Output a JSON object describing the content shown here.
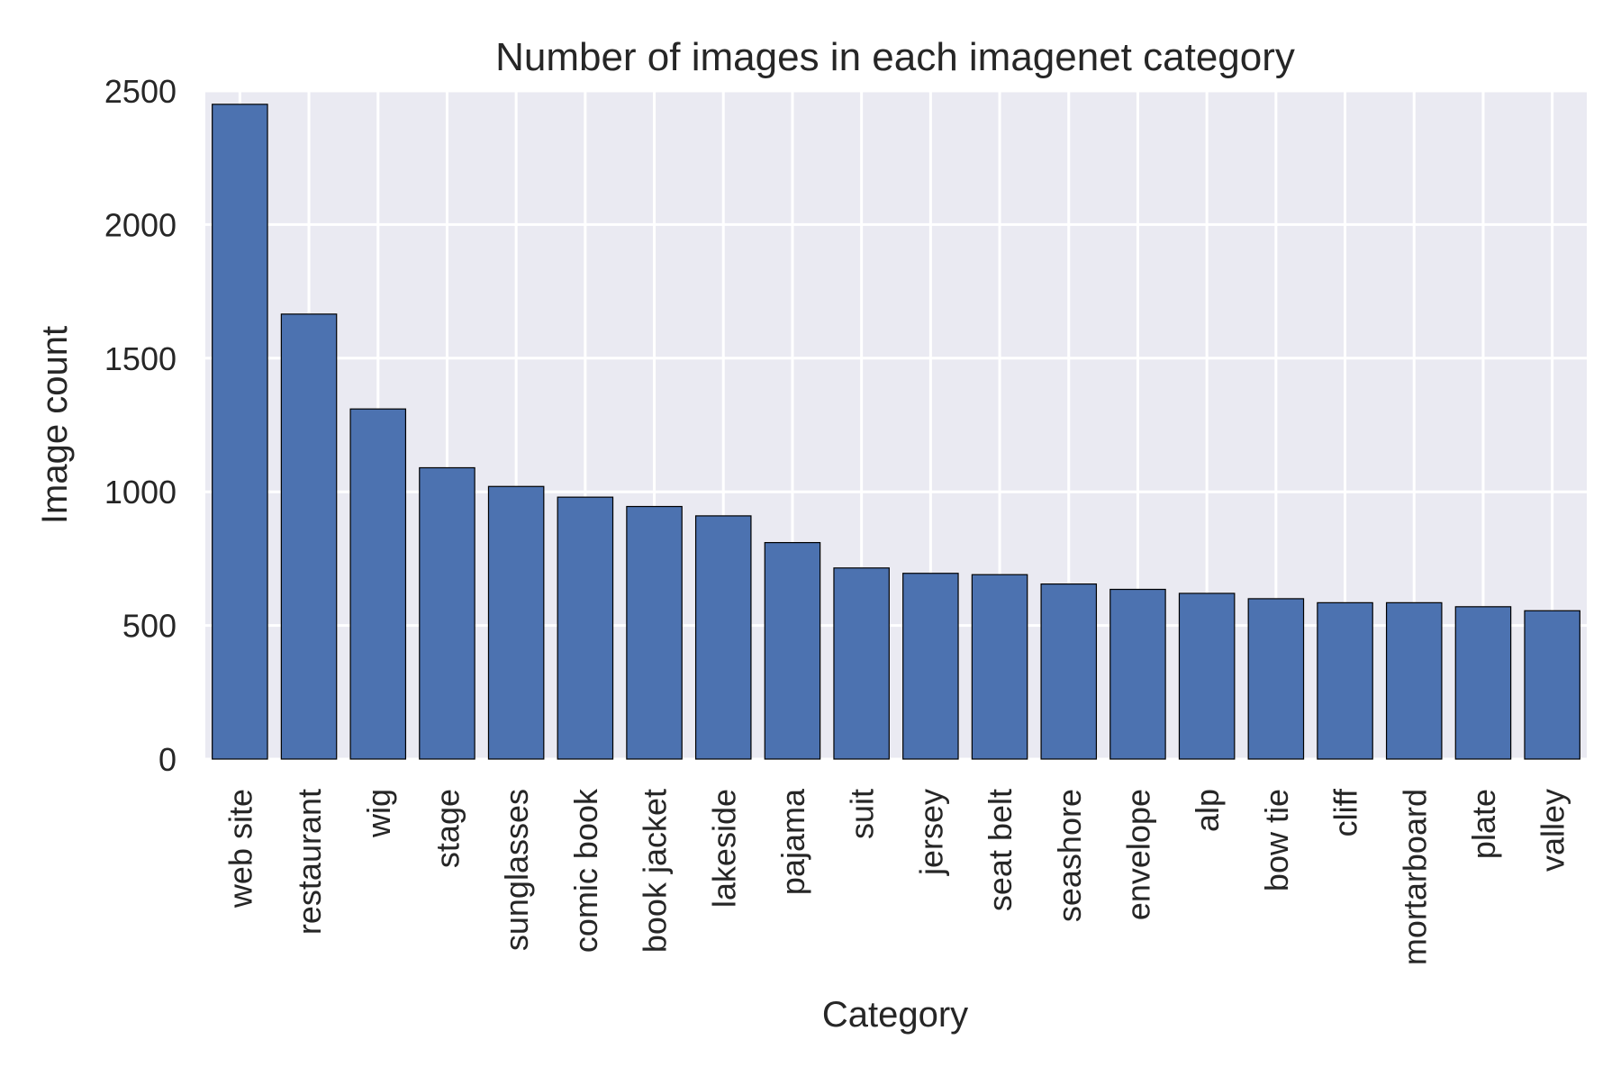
{
  "chart_data": {
    "type": "bar",
    "title": "Number of images in each imagenet category",
    "xlabel": "Category",
    "ylabel": "Image count",
    "categories": [
      "web site",
      "restaurant",
      "wig",
      "stage",
      "sunglasses",
      "comic book",
      "book jacket",
      "lakeside",
      "pajama",
      "suit",
      "jersey",
      "seat belt",
      "seashore",
      "envelope",
      "alp",
      "bow tie",
      "cliff",
      "mortarboard",
      "plate",
      "valley"
    ],
    "values": [
      2450,
      1665,
      1310,
      1090,
      1020,
      980,
      945,
      910,
      810,
      715,
      695,
      690,
      655,
      635,
      620,
      600,
      585,
      585,
      570,
      555
    ],
    "ylim": [
      0,
      2500
    ],
    "yticks": [
      0,
      500,
      1000,
      1500,
      2000,
      2500
    ],
    "grid": true,
    "colors": {
      "bar": "#4c72b0",
      "bar_edge": "#000000",
      "plot_background": "#eaeaf2",
      "grid": "#ffffff"
    }
  }
}
